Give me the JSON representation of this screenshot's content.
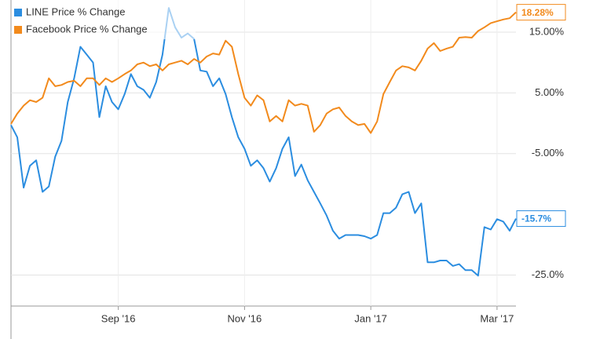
{
  "chart_data": {
    "type": "line",
    "categories": [
      null,
      null,
      null,
      null,
      null,
      null,
      null,
      null,
      null,
      null,
      null,
      null,
      null,
      null,
      null,
      null,
      null,
      "Sep '16",
      null,
      null,
      null,
      null,
      null,
      null,
      null,
      null,
      null,
      null,
      null,
      null,
      null,
      null,
      null,
      null,
      null,
      null,
      null,
      "Nov '16",
      null,
      null,
      null,
      null,
      null,
      null,
      null,
      null,
      null,
      null,
      null,
      null,
      null,
      null,
      null,
      null,
      null,
      null,
      null,
      "Jan '17",
      null,
      null,
      null,
      null,
      null,
      null,
      null,
      null,
      null,
      null,
      null,
      null,
      null,
      null,
      null,
      null,
      null,
      null,
      null,
      "Mar '17",
      null,
      null,
      null
    ],
    "series": [
      {
        "name": "LINE Price % Change",
        "color": "#2b8de0",
        "end_label": "-15.7%",
        "values": [
          -0.3,
          -2.3,
          -10.6,
          -7.0,
          -6.1,
          -11.3,
          -10.4,
          -5.5,
          -2.9,
          3.5,
          7.4,
          12.6,
          11.3,
          10.0,
          1.0,
          6.1,
          3.5,
          2.3,
          4.8,
          8.1,
          6.1,
          5.5,
          4.2,
          6.8,
          11.3,
          19.0,
          15.8,
          14.1,
          14.8,
          13.9,
          8.7,
          8.5,
          6.1,
          7.4,
          4.8,
          1.0,
          -2.3,
          -4.2,
          -7.0,
          -6.1,
          -7.4,
          -9.6,
          -7.4,
          -4.2,
          -2.3,
          -8.7,
          -6.8,
          -9.4,
          -11.3,
          -13.2,
          -15.2,
          -17.7,
          -19.0,
          -18.4,
          -18.4,
          -18.4,
          -18.6,
          -19.0,
          -18.4,
          -14.8,
          -14.8,
          -13.9,
          -11.7,
          -11.3,
          -14.8,
          -13.2,
          -22.9,
          -22.9,
          -22.6,
          -22.6,
          -23.5,
          -23.2,
          -24.2,
          -24.2,
          -25.1,
          -17.1,
          -17.5,
          -15.8,
          -16.2,
          -17.7,
          -15.7
        ]
      },
      {
        "name": "Facebook Price % Change",
        "color": "#f28a1c",
        "end_label": "18.28%",
        "values": [
          -0.1,
          1.6,
          2.9,
          3.8,
          3.5,
          4.2,
          7.4,
          6.1,
          6.3,
          6.8,
          7.0,
          6.1,
          7.4,
          7.4,
          6.3,
          7.4,
          6.8,
          7.4,
          8.1,
          8.7,
          9.7,
          10.0,
          9.4,
          9.7,
          8.7,
          9.7,
          10.0,
          10.3,
          9.7,
          10.6,
          10.0,
          11.0,
          11.5,
          11.3,
          13.6,
          12.6,
          8.1,
          4.2,
          2.9,
          4.6,
          3.8,
          0.3,
          1.2,
          0.3,
          3.8,
          2.9,
          3.2,
          2.9,
          -1.4,
          -0.3,
          1.6,
          2.3,
          2.6,
          1.2,
          0.3,
          -0.3,
          -0.1,
          -1.6,
          0.3,
          4.8,
          6.8,
          8.7,
          9.4,
          9.2,
          8.7,
          10.3,
          12.3,
          13.2,
          11.9,
          12.3,
          12.6,
          14.1,
          14.2,
          14.1,
          15.2,
          15.8,
          16.5,
          16.8,
          17.1,
          17.3,
          18.28
        ]
      }
    ],
    "ylim": [
      -30.1,
      20.3
    ],
    "yticks": [
      {
        "value": 15,
        "label": "15.00%"
      },
      {
        "value": 5,
        "label": "5.00%"
      },
      {
        "value": -5,
        "label": "-5.00%"
      },
      {
        "value": -25,
        "label": "-25.0%"
      }
    ],
    "grid": true,
    "legend": "top-left"
  }
}
